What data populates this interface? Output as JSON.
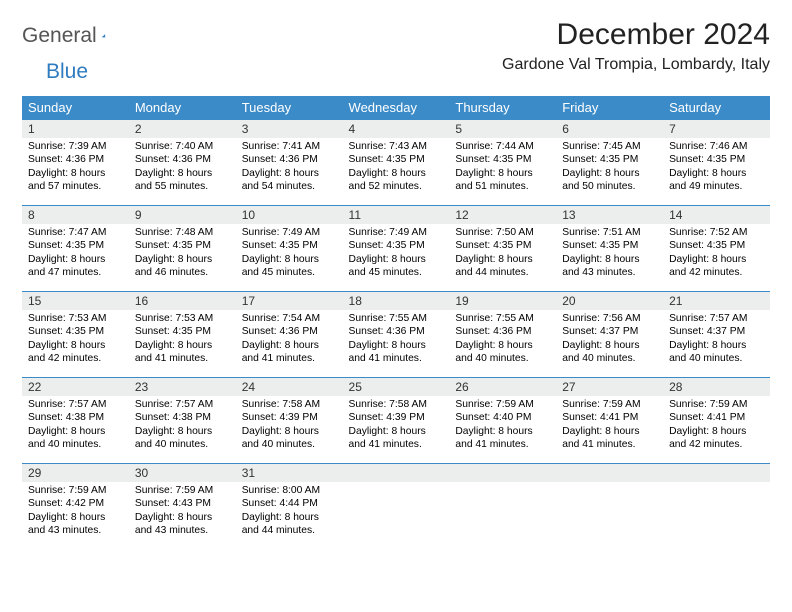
{
  "logo": {
    "general": "General",
    "blue": "Blue"
  },
  "title": "December 2024",
  "location": "Gardone Val Trompia, Lombardy, Italy",
  "colors": {
    "header_bg": "#3b8bc8",
    "header_fg": "#ffffff",
    "daynum_bg": "#eceded",
    "border": "#3b8bc8",
    "logo_gray": "#555555",
    "logo_blue": "#2f7bbf"
  },
  "weekdays": [
    "Sunday",
    "Monday",
    "Tuesday",
    "Wednesday",
    "Thursday",
    "Friday",
    "Saturday"
  ],
  "days": [
    {
      "n": "1",
      "sr": "7:39 AM",
      "ss": "4:36 PM",
      "dl": "8 hours and 57 minutes."
    },
    {
      "n": "2",
      "sr": "7:40 AM",
      "ss": "4:36 PM",
      "dl": "8 hours and 55 minutes."
    },
    {
      "n": "3",
      "sr": "7:41 AM",
      "ss": "4:36 PM",
      "dl": "8 hours and 54 minutes."
    },
    {
      "n": "4",
      "sr": "7:43 AM",
      "ss": "4:35 PM",
      "dl": "8 hours and 52 minutes."
    },
    {
      "n": "5",
      "sr": "7:44 AM",
      "ss": "4:35 PM",
      "dl": "8 hours and 51 minutes."
    },
    {
      "n": "6",
      "sr": "7:45 AM",
      "ss": "4:35 PM",
      "dl": "8 hours and 50 minutes."
    },
    {
      "n": "7",
      "sr": "7:46 AM",
      "ss": "4:35 PM",
      "dl": "8 hours and 49 minutes."
    },
    {
      "n": "8",
      "sr": "7:47 AM",
      "ss": "4:35 PM",
      "dl": "8 hours and 47 minutes."
    },
    {
      "n": "9",
      "sr": "7:48 AM",
      "ss": "4:35 PM",
      "dl": "8 hours and 46 minutes."
    },
    {
      "n": "10",
      "sr": "7:49 AM",
      "ss": "4:35 PM",
      "dl": "8 hours and 45 minutes."
    },
    {
      "n": "11",
      "sr": "7:49 AM",
      "ss": "4:35 PM",
      "dl": "8 hours and 45 minutes."
    },
    {
      "n": "12",
      "sr": "7:50 AM",
      "ss": "4:35 PM",
      "dl": "8 hours and 44 minutes."
    },
    {
      "n": "13",
      "sr": "7:51 AM",
      "ss": "4:35 PM",
      "dl": "8 hours and 43 minutes."
    },
    {
      "n": "14",
      "sr": "7:52 AM",
      "ss": "4:35 PM",
      "dl": "8 hours and 42 minutes."
    },
    {
      "n": "15",
      "sr": "7:53 AM",
      "ss": "4:35 PM",
      "dl": "8 hours and 42 minutes."
    },
    {
      "n": "16",
      "sr": "7:53 AM",
      "ss": "4:35 PM",
      "dl": "8 hours and 41 minutes."
    },
    {
      "n": "17",
      "sr": "7:54 AM",
      "ss": "4:36 PM",
      "dl": "8 hours and 41 minutes."
    },
    {
      "n": "18",
      "sr": "7:55 AM",
      "ss": "4:36 PM",
      "dl": "8 hours and 41 minutes."
    },
    {
      "n": "19",
      "sr": "7:55 AM",
      "ss": "4:36 PM",
      "dl": "8 hours and 40 minutes."
    },
    {
      "n": "20",
      "sr": "7:56 AM",
      "ss": "4:37 PM",
      "dl": "8 hours and 40 minutes."
    },
    {
      "n": "21",
      "sr": "7:57 AM",
      "ss": "4:37 PM",
      "dl": "8 hours and 40 minutes."
    },
    {
      "n": "22",
      "sr": "7:57 AM",
      "ss": "4:38 PM",
      "dl": "8 hours and 40 minutes."
    },
    {
      "n": "23",
      "sr": "7:57 AM",
      "ss": "4:38 PM",
      "dl": "8 hours and 40 minutes."
    },
    {
      "n": "24",
      "sr": "7:58 AM",
      "ss": "4:39 PM",
      "dl": "8 hours and 40 minutes."
    },
    {
      "n": "25",
      "sr": "7:58 AM",
      "ss": "4:39 PM",
      "dl": "8 hours and 41 minutes."
    },
    {
      "n": "26",
      "sr": "7:59 AM",
      "ss": "4:40 PM",
      "dl": "8 hours and 41 minutes."
    },
    {
      "n": "27",
      "sr": "7:59 AM",
      "ss": "4:41 PM",
      "dl": "8 hours and 41 minutes."
    },
    {
      "n": "28",
      "sr": "7:59 AM",
      "ss": "4:41 PM",
      "dl": "8 hours and 42 minutes."
    },
    {
      "n": "29",
      "sr": "7:59 AM",
      "ss": "4:42 PM",
      "dl": "8 hours and 43 minutes."
    },
    {
      "n": "30",
      "sr": "7:59 AM",
      "ss": "4:43 PM",
      "dl": "8 hours and 43 minutes."
    },
    {
      "n": "31",
      "sr": "8:00 AM",
      "ss": "4:44 PM",
      "dl": "8 hours and 44 minutes."
    }
  ],
  "labels": {
    "sunrise": "Sunrise:",
    "sunset": "Sunset:",
    "daylight": "Daylight:"
  }
}
